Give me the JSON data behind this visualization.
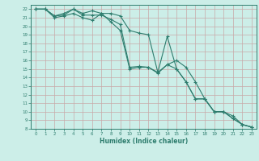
{
  "xlabel": "Humidex (Indice chaleur)",
  "bg_color": "#cceee8",
  "grid_color": "#c8a8a8",
  "line_color": "#2e7d6e",
  "xlim": [
    -0.5,
    23.5
  ],
  "ylim": [
    8,
    22.5
  ],
  "xticks": [
    0,
    1,
    2,
    3,
    4,
    5,
    6,
    7,
    8,
    9,
    10,
    11,
    12,
    13,
    14,
    15,
    16,
    17,
    18,
    19,
    20,
    21,
    22,
    23
  ],
  "yticks": [
    8,
    9,
    10,
    11,
    12,
    13,
    14,
    15,
    16,
    17,
    18,
    19,
    20,
    21,
    22
  ],
  "line1_x": [
    0,
    1,
    2,
    3,
    4,
    5,
    6,
    7,
    8,
    9,
    10,
    11,
    12,
    13,
    14,
    15,
    16,
    17,
    18,
    19,
    20,
    21,
    22,
    23
  ],
  "line1_y": [
    22,
    22,
    21.2,
    21.5,
    22,
    21.3,
    21.3,
    21.3,
    20.8,
    20.2,
    15.2,
    15.3,
    15.2,
    14.6,
    15.5,
    15.0,
    13.5,
    11.5,
    11.5,
    10.0,
    10.0,
    9.2,
    8.5,
    8.2
  ],
  "line2_x": [
    0,
    1,
    2,
    3,
    4,
    5,
    6,
    7,
    8,
    9,
    10,
    11,
    12,
    13,
    14,
    15,
    16,
    17,
    18,
    19,
    20,
    21,
    22,
    23
  ],
  "line2_y": [
    22,
    22,
    21.2,
    21.3,
    22,
    21.5,
    21.8,
    21.5,
    21.5,
    21.2,
    19.5,
    19.2,
    19.0,
    14.6,
    18.8,
    15.0,
    13.5,
    11.5,
    11.5,
    10.0,
    10.0,
    9.5,
    8.5,
    8.2
  ],
  "line3_x": [
    0,
    1,
    2,
    3,
    4,
    5,
    6,
    7,
    8,
    9,
    10,
    11,
    12,
    13,
    14,
    15,
    16,
    17,
    18,
    19,
    20,
    21,
    22,
    23
  ],
  "line3_y": [
    22,
    22,
    21.0,
    21.2,
    21.5,
    21.0,
    20.7,
    21.5,
    20.5,
    19.5,
    15.0,
    15.2,
    15.2,
    14.5,
    15.5,
    16.0,
    15.2,
    13.5,
    11.5,
    10.0,
    10.0,
    9.2,
    8.5,
    8.2
  ]
}
